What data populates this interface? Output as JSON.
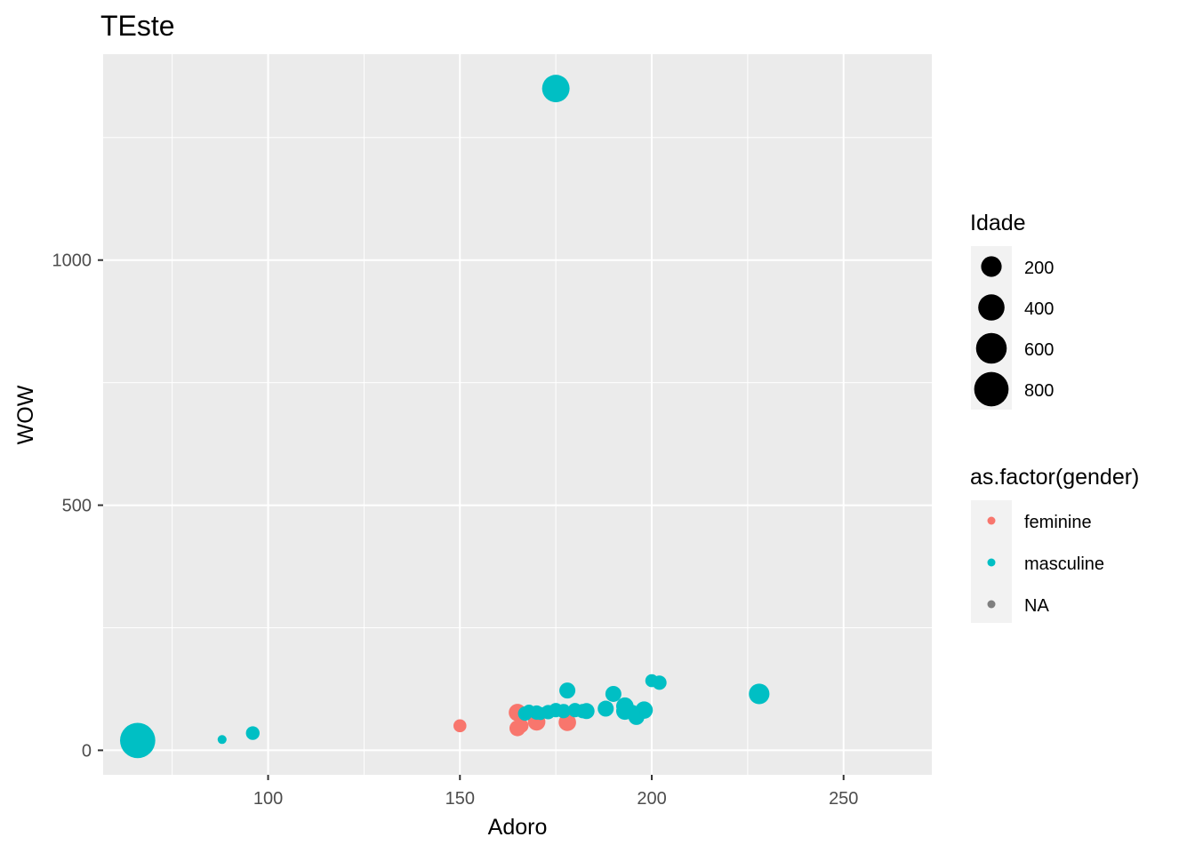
{
  "chart_data": {
    "type": "scatter",
    "title": "TEste",
    "xlabel": "Adoro",
    "ylabel": "WOW",
    "xlim": [
      57,
      273
    ],
    "ylim": [
      -50,
      1420
    ],
    "x_ticks": [
      100,
      150,
      200,
      250
    ],
    "y_ticks": [
      0,
      500,
      1000
    ],
    "grid": true,
    "background": "#ebebeb",
    "legend_position": "right",
    "size_legend": {
      "title": "Idade",
      "entries": [
        {
          "label": "200",
          "value": 200
        },
        {
          "label": "400",
          "value": 400
        },
        {
          "label": "600",
          "value": 600
        },
        {
          "label": "800",
          "value": 800
        }
      ]
    },
    "color_legend": {
      "title": "as.factor(gender)",
      "entries": [
        {
          "label": "feminine",
          "color": "#f8766d"
        },
        {
          "label": "masculine",
          "color": "#00bfc4"
        },
        {
          "label": "NA",
          "color": "#7f7f7f"
        }
      ]
    },
    "series": [
      {
        "name": "feminine",
        "color": "#f8766d",
        "points": [
          {
            "x": 150,
            "y": 50,
            "size": 40
          },
          {
            "x": 165,
            "y": 77,
            "size": 120
          },
          {
            "x": 165,
            "y": 45,
            "size": 90
          },
          {
            "x": 166,
            "y": 50,
            "size": 60
          },
          {
            "x": 170,
            "y": 58,
            "size": 120
          },
          {
            "x": 178,
            "y": 57,
            "size": 120
          }
        ]
      },
      {
        "name": "masculine",
        "color": "#00bfc4",
        "points": [
          {
            "x": 66,
            "y": 20,
            "size": 850
          },
          {
            "x": 88,
            "y": 22,
            "size": 5
          },
          {
            "x": 96,
            "y": 35,
            "size": 50
          },
          {
            "x": 175,
            "y": 1350,
            "size": 450
          },
          {
            "x": 167,
            "y": 75,
            "size": 60
          },
          {
            "x": 168,
            "y": 80,
            "size": 40
          },
          {
            "x": 170,
            "y": 77,
            "size": 60
          },
          {
            "x": 171,
            "y": 75,
            "size": 40
          },
          {
            "x": 173,
            "y": 78,
            "size": 60
          },
          {
            "x": 175,
            "y": 82,
            "size": 60
          },
          {
            "x": 177,
            "y": 80,
            "size": 60
          },
          {
            "x": 178,
            "y": 122,
            "size": 90
          },
          {
            "x": 180,
            "y": 82,
            "size": 60
          },
          {
            "x": 182,
            "y": 80,
            "size": 60
          },
          {
            "x": 183,
            "y": 80,
            "size": 90
          },
          {
            "x": 188,
            "y": 85,
            "size": 90
          },
          {
            "x": 190,
            "y": 115,
            "size": 90
          },
          {
            "x": 193,
            "y": 90,
            "size": 120
          },
          {
            "x": 193,
            "y": 80,
            "size": 120
          },
          {
            "x": 195,
            "y": 78,
            "size": 60
          },
          {
            "x": 196,
            "y": 68,
            "size": 90
          },
          {
            "x": 198,
            "y": 82,
            "size": 120
          },
          {
            "x": 200,
            "y": 142,
            "size": 40
          },
          {
            "x": 202,
            "y": 138,
            "size": 60
          },
          {
            "x": 228,
            "y": 115,
            "size": 200
          }
        ]
      }
    ]
  }
}
